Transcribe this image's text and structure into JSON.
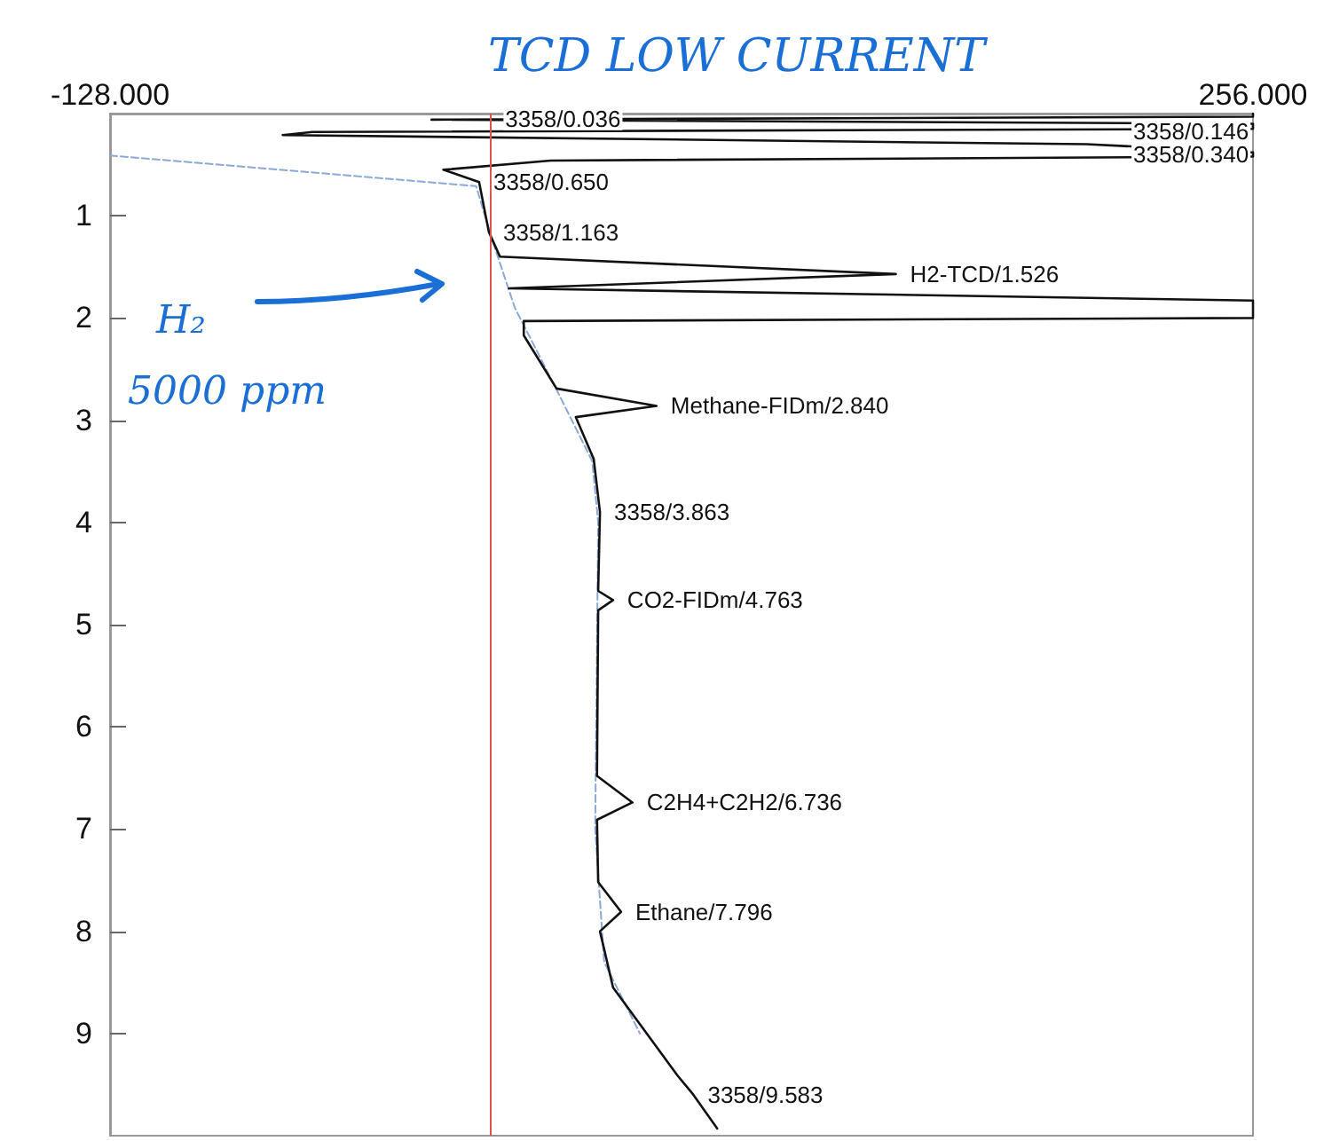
{
  "chart_data": {
    "type": "line",
    "title": "TCD LOW CURRENT",
    "xlim": [
      -128,
      256
    ],
    "xticks": [
      {
        "value": -128,
        "label": "-128.000"
      },
      {
        "value": 256,
        "label": "256.000"
      }
    ],
    "ylim": [
      10,
      0
    ],
    "yticks": [
      1,
      2,
      3,
      4,
      5,
      6,
      7,
      8,
      9
    ],
    "marker": "none",
    "series": [
      {
        "color": "#111111",
        "line_style": "solid",
        "x": [
          256,
          256,
          -20,
          256,
          256,
          -60,
          -70,
          200,
          256,
          256,
          20,
          -16,
          -4,
          -1.8,
          -0.7,
          3,
          136,
          6,
          256,
          256,
          11,
          11,
          22,
          55.6,
          28.5,
          34.5,
          36.6,
          36,
          41,
          36,
          35.6,
          47.5,
          35.6,
          36,
          43.7,
          36.6,
          41,
          51.8,
          62.6,
          68,
          76
        ],
        "values": [
          0.0,
          0.03,
          0.06,
          0.1,
          0.15,
          0.18,
          0.21,
          0.3,
          0.38,
          0.42,
          0.46,
          0.55,
          0.67,
          1.0,
          1.16,
          1.4,
          1.57,
          1.71,
          1.83,
          2.0,
          2.03,
          2.17,
          2.69,
          2.86,
          2.97,
          3.38,
          3.9,
          4.67,
          4.76,
          4.86,
          6.48,
          6.74,
          6.91,
          7.52,
          7.81,
          8.0,
          8.55,
          8.98,
          9.41,
          9.6,
          9.93
        ]
      },
      {
        "color": "#8aa8d8",
        "line_style": "dashed",
        "x": [
          -128,
          -5,
          0,
          8,
          22,
          34,
          36,
          35,
          38,
          50
        ],
        "values": [
          0.41,
          0.71,
          1.2,
          1.9,
          2.7,
          3.4,
          4,
          7,
          8.3,
          9
        ]
      }
    ],
    "ref_lines": [
      {
        "axis": "x",
        "value": 0,
        "color": "#d9534f"
      }
    ],
    "annotations": [
      {
        "text": "3358/0.036",
        "x": 0,
        "y": 0.05
      },
      {
        "text": "3358/0.146",
        "x": 211,
        "y": 0.17
      },
      {
        "text": "3358/0.340",
        "x": 211,
        "y": 0.4
      },
      {
        "text": "3358/0.650",
        "x": -4,
        "y": 0.67
      },
      {
        "text": "3358/1.163",
        "x": -0.7,
        "y": 1.16
      },
      {
        "text": "H2-TCD/1.526",
        "x": 136,
        "y": 1.57
      },
      {
        "text": "Methane-FIDm/2.840",
        "x": 55.6,
        "y": 2.86
      },
      {
        "text": "3358/3.863",
        "x": 36.6,
        "y": 3.9
      },
      {
        "text": "CO2-FIDm/4.763",
        "x": 41,
        "y": 4.76
      },
      {
        "text": "C2H4+C2H2/6.736",
        "x": 47.5,
        "y": 6.74
      },
      {
        "text": "Ethane/7.796",
        "x": 43.7,
        "y": 7.81
      },
      {
        "text": "3358/9.583",
        "x": 68,
        "y": 9.6
      },
      "H₂",
      "5000 ppm"
    ]
  }
}
